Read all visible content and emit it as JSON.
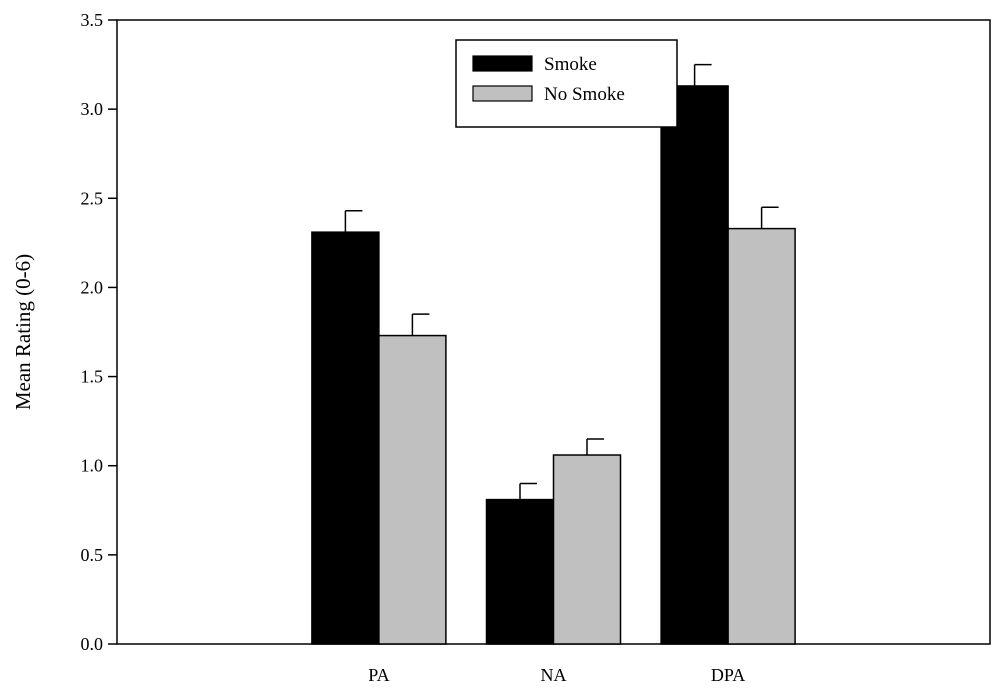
{
  "chart_data": {
    "type": "bar",
    "title": "",
    "xlabel": "",
    "ylabel": "Mean Rating (0-6)",
    "categories": [
      "PA",
      "NA",
      "DPA"
    ],
    "ylim": [
      0,
      3.5
    ],
    "yticks": [
      "0.0",
      "0.5",
      "1.0",
      "1.5",
      "2.0",
      "2.5",
      "3.0",
      "3.5"
    ],
    "grid": false,
    "legend_position": "top-center",
    "series": [
      {
        "name": "Smoke",
        "color": "#000000",
        "values": [
          2.31,
          0.81,
          3.13
        ],
        "error": [
          0.12,
          0.09,
          0.12
        ]
      },
      {
        "name": "No Smoke",
        "color": "#c0c0c0",
        "values": [
          1.73,
          1.06,
          2.33
        ],
        "error": [
          0.12,
          0.09,
          0.12
        ]
      }
    ]
  }
}
